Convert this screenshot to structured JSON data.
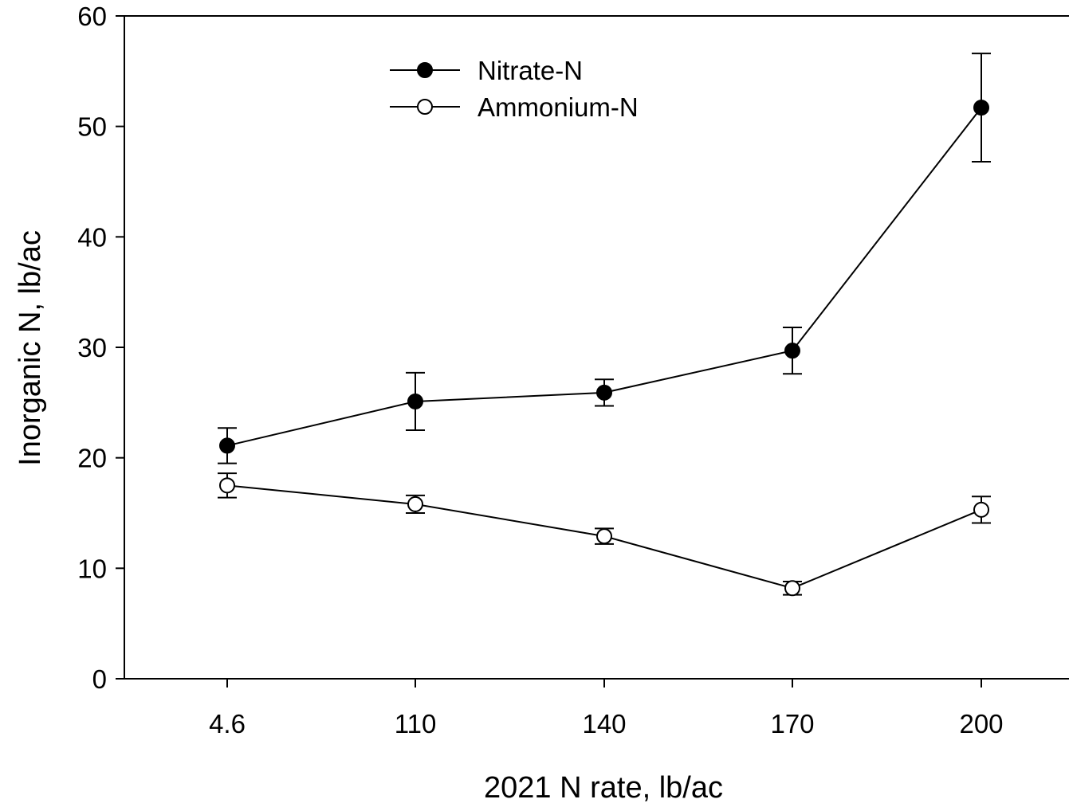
{
  "chart_data": {
    "type": "line",
    "title": "",
    "xlabel": "2021 N rate, lb/ac",
    "ylabel": "Inorganic N, lb/ac",
    "categories": [
      "4.6",
      "110",
      "140",
      "170",
      "200"
    ],
    "ylim": [
      0,
      60
    ],
    "yticks": [
      "0",
      "10",
      "20",
      "30",
      "40",
      "50",
      "60"
    ],
    "grid": false,
    "legend_position": "top-center",
    "series": [
      {
        "name": "Nitrate-N",
        "marker": "filled-circle",
        "values": [
          21.1,
          25.1,
          25.9,
          29.7,
          51.7
        ],
        "error": [
          1.6,
          2.6,
          1.2,
          2.1,
          4.9
        ]
      },
      {
        "name": "Ammonium-N",
        "marker": "open-circle",
        "values": [
          17.5,
          15.8,
          12.9,
          8.2,
          15.3
        ],
        "error": [
          1.1,
          0.8,
          0.7,
          0.6,
          1.2
        ]
      }
    ]
  }
}
